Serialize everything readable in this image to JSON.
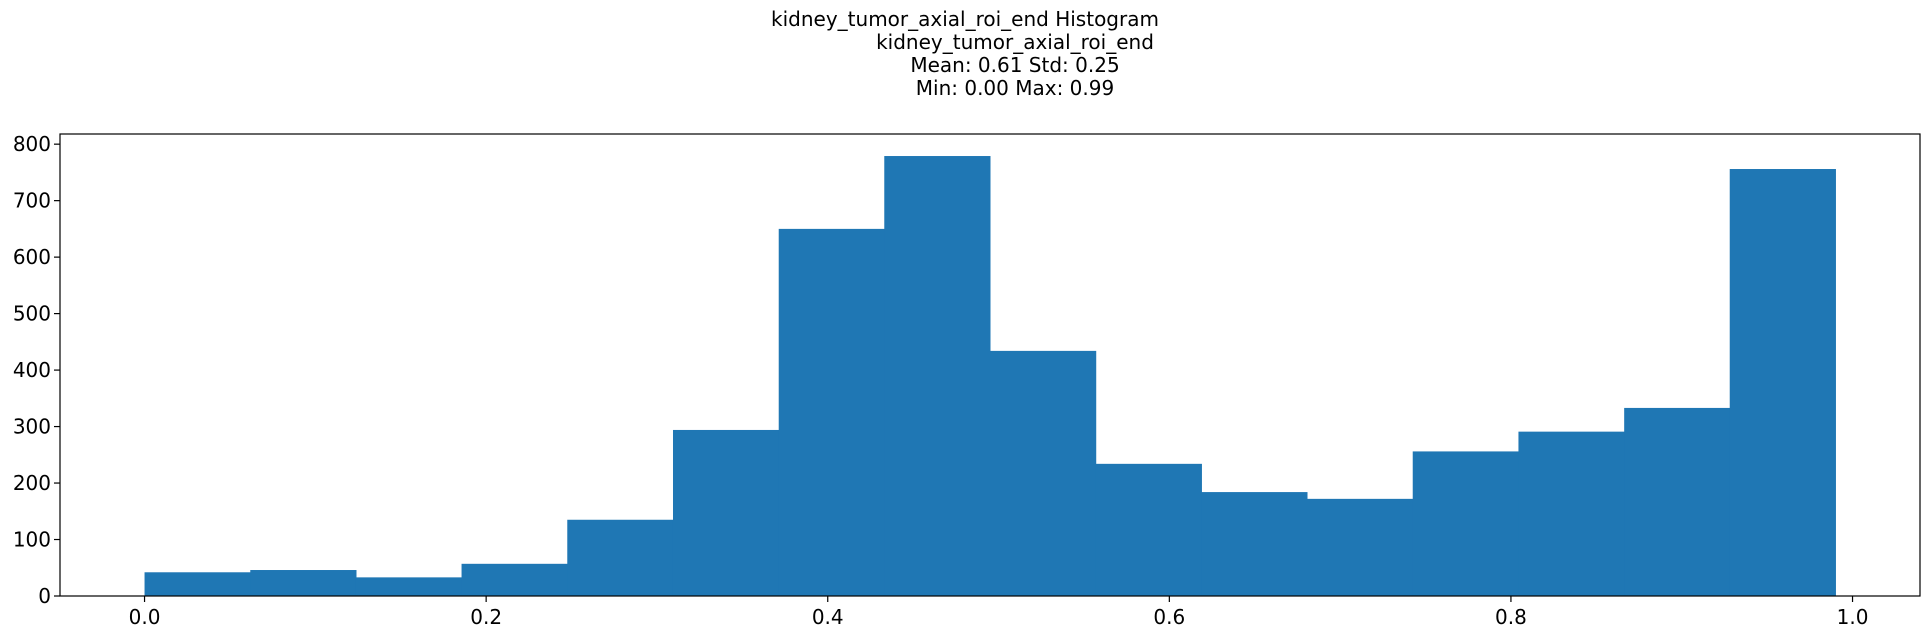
{
  "chart_data": {
    "type": "bar",
    "title_lines": [
      "kidney_tumor_axial_roi_end Histogram",
      "kidney_tumor_axial_roi_end",
      "Mean: 0.61 Std: 0.25",
      "Min: 0.00 Max: 0.99"
    ],
    "xlabel": "",
    "ylabel": "",
    "bin_edges": [
      0.0,
      0.0619,
      0.1238,
      0.1856,
      0.2475,
      0.3094,
      0.3713,
      0.4331,
      0.495,
      0.5569,
      0.6188,
      0.6806,
      0.7425,
      0.8044,
      0.8663,
      0.9281,
      0.99
    ],
    "values": [
      42,
      46,
      33,
      57,
      135,
      294,
      650,
      779,
      434,
      234,
      184,
      172,
      256,
      291,
      333,
      756
    ],
    "xlim": [
      -0.0495,
      1.0395
    ],
    "ylim": [
      0,
      818
    ],
    "xticks": [
      0.0,
      0.2,
      0.4,
      0.6,
      0.8,
      1.0
    ],
    "xtick_labels": [
      "0.0",
      "0.2",
      "0.4",
      "0.6",
      "0.8",
      "1.0"
    ],
    "yticks": [
      0,
      100,
      200,
      300,
      400,
      500,
      600,
      700,
      800
    ],
    "ytick_labels": [
      "0",
      "100",
      "200",
      "300",
      "400",
      "500",
      "600",
      "700",
      "800"
    ],
    "grid": false,
    "bar_color": "#1f77b4"
  }
}
